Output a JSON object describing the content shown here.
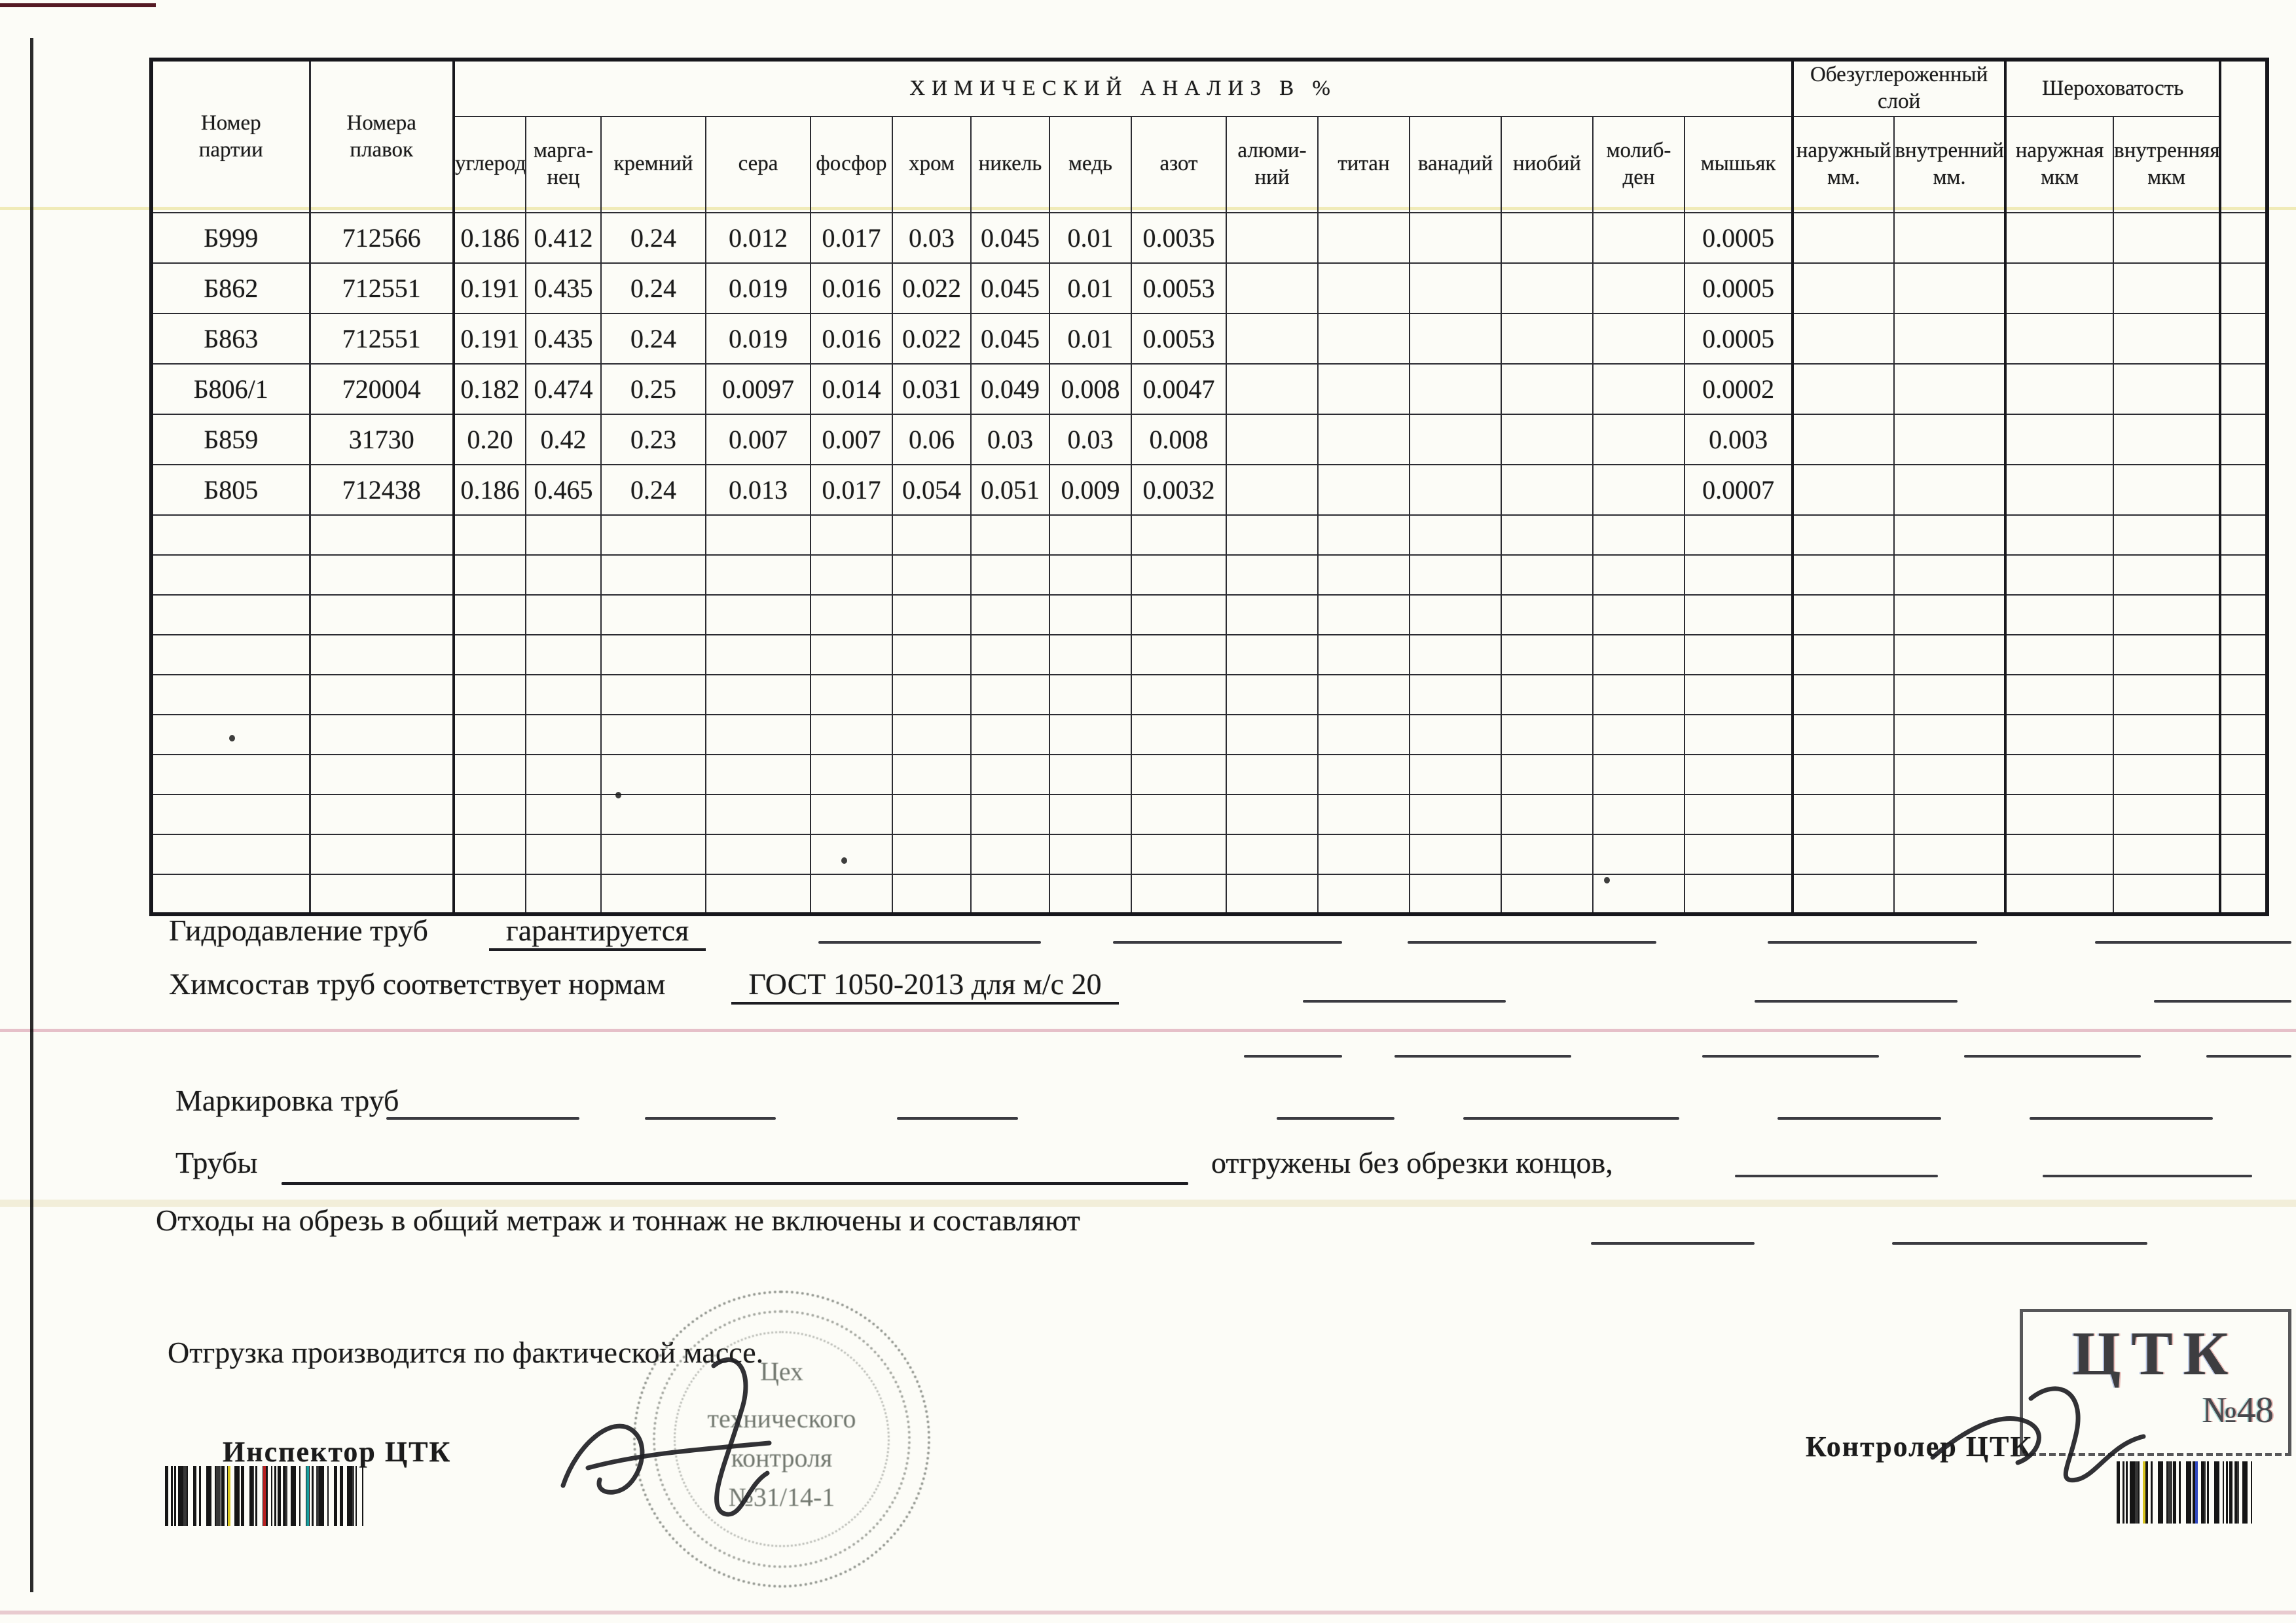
{
  "colors": {
    "paper": "#fcfcf7",
    "ink": "#1b1b1b",
    "table_line": "#17171c",
    "pink_line": "#e5b9c8",
    "yellow_line": "#efe9a8",
    "stamp_ink": "#62685f"
  },
  "table": {
    "header": {
      "batch": "Номер\nпартии",
      "melts": "Номера\nплавок",
      "chem_title": "ХИМИЧЕСКИЙ АНАЛИЗ В  %",
      "elements": [
        "углерод",
        "марга-\nнец",
        "кремний",
        "сера",
        "фосфор",
        "хром",
        "никель",
        "медь",
        "азот",
        "алюми-\nний",
        "титан",
        "ванадий",
        "ниобий",
        "молиб-\nден",
        "мышьяк"
      ],
      "decarb_group": "Обезуглероженный\nслой",
      "decarb_sub": [
        "наружный\nмм.",
        "внутренний\nмм."
      ],
      "rough_group": "Шероховатость",
      "rough_sub": [
        "наружная\nмкм",
        "внутренняя\nмкм"
      ]
    },
    "rows": [
      {
        "party": "Б999",
        "melt": "712566",
        "values": [
          "0.186",
          "0.412",
          "0.24",
          "0.012",
          "0.017",
          "0.03",
          "0.045",
          "0.01",
          "0.0035",
          "",
          "",
          "",
          "",
          "",
          "0.0005"
        ]
      },
      {
        "party": "Б862",
        "melt": "712551",
        "values": [
          "0.191",
          "0.435",
          "0.24",
          "0.019",
          "0.016",
          "0.022",
          "0.045",
          "0.01",
          "0.0053",
          "",
          "",
          "",
          "",
          "",
          "0.0005"
        ]
      },
      {
        "party": "Б863",
        "melt": "712551",
        "values": [
          "0.191",
          "0.435",
          "0.24",
          "0.019",
          "0.016",
          "0.022",
          "0.045",
          "0.01",
          "0.0053",
          "",
          "",
          "",
          "",
          "",
          "0.0005"
        ]
      },
      {
        "party": "Б806/1",
        "melt": "720004",
        "values": [
          "0.182",
          "0.474",
          "0.25",
          "0.0097",
          "0.014",
          "0.031",
          "0.049",
          "0.008",
          "0.0047",
          "",
          "",
          "",
          "",
          "",
          "0.0002"
        ]
      },
      {
        "party": "Б859",
        "melt": "31730",
        "values": [
          "0.20",
          "0.42",
          "0.23",
          "0.007",
          "0.007",
          "0.06",
          "0.03",
          "0.03",
          "0.008",
          "",
          "",
          "",
          "",
          "",
          "0.003"
        ]
      },
      {
        "party": "Б805",
        "melt": "712438",
        "values": [
          "0.186",
          "0.465",
          "0.24",
          "0.013",
          "0.017",
          "0.054",
          "0.051",
          "0.009",
          "0.0032",
          "",
          "",
          "",
          "",
          "",
          "0.0007"
        ]
      }
    ],
    "empty_rows": 10
  },
  "sections": {
    "hydro_label": "Гидродавление труб",
    "hydro_value": "гарантируется",
    "chem_label": "Химсостав труб соответствует нормам",
    "chem_value": "ГОСТ 1050-2013 для м/с 20",
    "marking_label": "Маркировка труб",
    "pipes_label": "Трубы",
    "pipes_note": "отгружены без обрезки концов,",
    "waste_note": "Отходы на обрезь в общий метраж и тоннаж не включены и составляют",
    "shipping_note": "Отгрузка производится по фактической массе.",
    "inspector_label": "Инспектор ЦТК",
    "controller_label": "Контролер ЦТК"
  },
  "stamps": {
    "round_lines": [
      "Цех",
      "технического",
      "контроля",
      "№31/14-1"
    ],
    "rect_title": "ЦТК",
    "rect_number": "№48"
  }
}
